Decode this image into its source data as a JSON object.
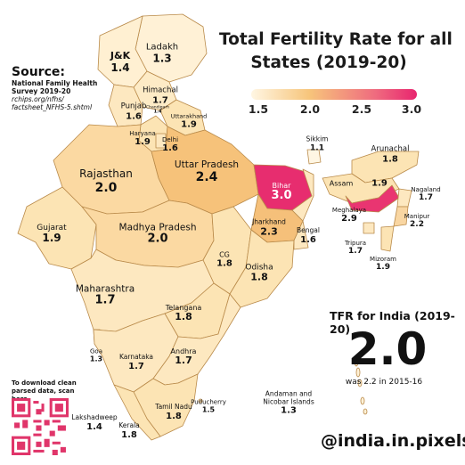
{
  "title": {
    "line1": "Total Fertility Rate for all",
    "line2": "States (2019-20)"
  },
  "legend": {
    "ticks": [
      "1.5",
      "2.0",
      "2.5",
      "3.0"
    ],
    "colors": [
      "#fff6e3",
      "#f7c57b",
      "#ef6b7f",
      "#e8256f"
    ]
  },
  "source": {
    "heading": "Source:",
    "line1": "National Family Health",
    "line2": "Survey 2019-20",
    "line3": "rchips.org/nfhs/",
    "line4": "factsheet_NFHS-5.shtml"
  },
  "states": {
    "ladakh": {
      "name": "Ladakh",
      "value": "1.3"
    },
    "jk": {
      "name": "J&K",
      "value": "1.4"
    },
    "himachal": {
      "name": "Himachal",
      "value": "1.7"
    },
    "punjab": {
      "name": "Punjab",
      "value": "1.6"
    },
    "chandigarh": {
      "name": "Chandigarh",
      "value": "1.4"
    },
    "uttarakhand": {
      "name": "Uttarakhand",
      "value": "1.9"
    },
    "haryana": {
      "name": "Haryana",
      "value": "1.9"
    },
    "delhi": {
      "name": "Delhi",
      "value": "1.6"
    },
    "rajasthan": {
      "name": "Rajasthan",
      "value": "2.0"
    },
    "up": {
      "name": "Uttar Pradesh",
      "value": "2.4"
    },
    "bihar": {
      "name": "Bihar",
      "value": "3.0"
    },
    "sikkim": {
      "name": "Sikkim",
      "value": "1.1"
    },
    "arunachal": {
      "name": "Arunachal",
      "value": "1.8"
    },
    "assam": {
      "name": "Assam",
      "value": "1.9"
    },
    "nagaland": {
      "name": "Nagaland",
      "value": "1.7"
    },
    "meghalaya": {
      "name": "Meghalaya",
      "value": "2.9"
    },
    "manipur": {
      "name": "Manipur",
      "value": "2.2"
    },
    "tripura": {
      "name": "Tripura",
      "value": "1.7"
    },
    "mizoram": {
      "name": "Mizoram",
      "value": "1.9"
    },
    "gujarat": {
      "name": "Gujarat",
      "value": "1.9"
    },
    "mp": {
      "name": "Madhya Pradesh",
      "value": "2.0"
    },
    "jharkhand": {
      "name": "Jharkhand",
      "value": "2.3"
    },
    "bengal": {
      "name": "Bengal",
      "value": "1.6"
    },
    "cg": {
      "name": "CG",
      "value": "1.8"
    },
    "odisha": {
      "name": "Odisha",
      "value": "1.8"
    },
    "maharashtra": {
      "name": "Maharashtra",
      "value": "1.7"
    },
    "telangana": {
      "name": "Telangana",
      "value": "1.8"
    },
    "goa": {
      "name": "Goa",
      "value": "1.3"
    },
    "karnataka": {
      "name": "Karnataka",
      "value": "1.7"
    },
    "andhra": {
      "name": "Andhra",
      "value": "1.7"
    },
    "tamilnadu": {
      "name": "Tamil Nadu",
      "value": "1.8"
    },
    "puducherry": {
      "name": "Puducherry",
      "value": "1.5"
    },
    "kerala": {
      "name": "Kerala",
      "value": "1.8"
    },
    "lakshadweep": {
      "name": "Lakshadweep",
      "value": "1.4"
    },
    "andaman": {
      "name": "Andaman and Nicobar Islands",
      "value": "1.3",
      "line1": "Andaman and",
      "line2": "Nicobar Islands"
    }
  },
  "national": {
    "label": "TFR for India (2019-20)",
    "value": "2.0",
    "previous": "was 2.2 in 2015-16"
  },
  "download_note": "To download clean parsed data, scan here",
  "handle": "@india.in.pixels"
}
